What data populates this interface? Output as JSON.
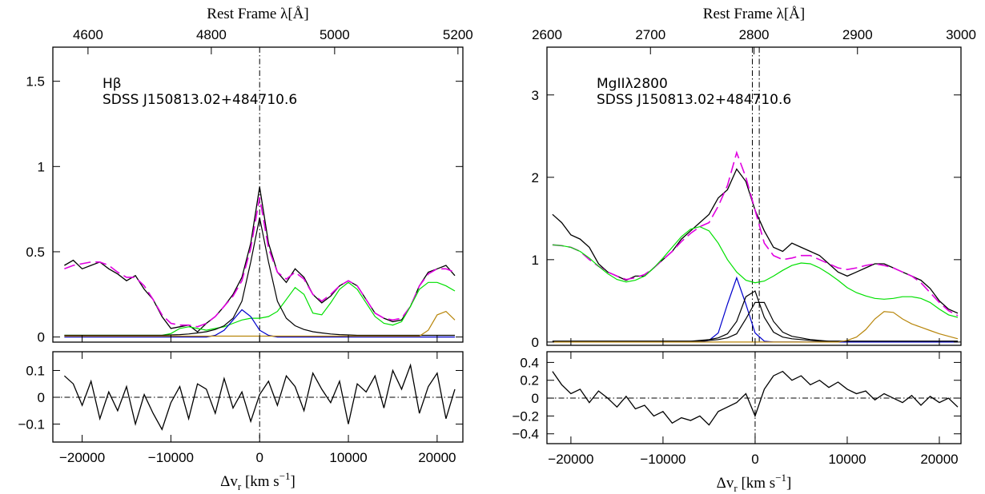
{
  "chart_data": [
    {
      "type": "line",
      "annotations": [
        "Hβ",
        "SDSS J150813.02+484710.6"
      ],
      "x2label": "Rest Frame λ[Å]",
      "x2lim": [
        4543,
        5208
      ],
      "x2ticks": [
        4600,
        4800,
        5000,
        5200
      ],
      "xlim": [
        -23300,
        22900
      ],
      "xticks": [
        -20000,
        -10000,
        0,
        10000,
        20000
      ],
      "ylim": [
        -0.03,
        1.7
      ],
      "yticks": [
        0,
        0.5,
        1,
        1.5
      ],
      "vlines": [
        0
      ],
      "x": [
        -22000,
        -21000,
        -20000,
        -19000,
        -18000,
        -17000,
        -16000,
        -15000,
        -14000,
        -13000,
        -12000,
        -11000,
        -10000,
        -9000,
        -8000,
        -7000,
        -6000,
        -5000,
        -4000,
        -3000,
        -2000,
        -1000,
        0,
        1000,
        2000,
        3000,
        4000,
        5000,
        6000,
        7000,
        8000,
        9000,
        10000,
        11000,
        12000,
        13000,
        14000,
        15000,
        16000,
        17000,
        18000,
        19000,
        20000,
        21000,
        22000
      ],
      "series": [
        {
          "color": "#000000",
          "values": [
            0.42,
            0.45,
            0.4,
            0.42,
            0.44,
            0.4,
            0.37,
            0.33,
            0.36,
            0.28,
            0.22,
            0.12,
            0.05,
            0.06,
            0.07,
            0.03,
            0.08,
            0.12,
            0.18,
            0.25,
            0.35,
            0.55,
            0.88,
            0.55,
            0.38,
            0.32,
            0.4,
            0.35,
            0.25,
            0.2,
            0.24,
            0.3,
            0.33,
            0.3,
            0.22,
            0.14,
            0.11,
            0.09,
            0.1,
            0.18,
            0.3,
            0.38,
            0.4,
            0.42,
            0.36
          ]
        },
        {
          "color": "#e000e0",
          "dashed": true,
          "values": [
            0.4,
            0.42,
            0.43,
            0.44,
            0.44,
            0.42,
            0.38,
            0.35,
            0.35,
            0.3,
            0.22,
            0.13,
            0.08,
            0.07,
            0.07,
            0.06,
            0.08,
            0.12,
            0.18,
            0.24,
            0.33,
            0.52,
            0.82,
            0.52,
            0.38,
            0.34,
            0.38,
            0.34,
            0.25,
            0.21,
            0.25,
            0.3,
            0.33,
            0.3,
            0.22,
            0.14,
            0.11,
            0.1,
            0.11,
            0.18,
            0.3,
            0.37,
            0.4,
            0.4,
            0.38
          ]
        },
        {
          "color": "#00e000",
          "values": [
            0.01,
            0.01,
            0.01,
            0.01,
            0.01,
            0.01,
            0.01,
            0.01,
            0.01,
            0.01,
            0.01,
            0.01,
            0.02,
            0.05,
            0.06,
            0.05,
            0.04,
            0.05,
            0.06,
            0.08,
            0.1,
            0.11,
            0.11,
            0.12,
            0.15,
            0.22,
            0.29,
            0.25,
            0.14,
            0.13,
            0.2,
            0.28,
            0.32,
            0.28,
            0.2,
            0.12,
            0.08,
            0.07,
            0.09,
            0.18,
            0.28,
            0.32,
            0.32,
            0.3,
            0.27
          ]
        },
        {
          "color": "#0000cc",
          "values": [
            0,
            0,
            0,
            0,
            0,
            0,
            0,
            0,
            0,
            0,
            0,
            0,
            0,
            0,
            0,
            0,
            0,
            0.01,
            0.04,
            0.1,
            0.16,
            0.12,
            0.04,
            0.01,
            0,
            0,
            0,
            0,
            0,
            0,
            0,
            0,
            0,
            0,
            0,
            0,
            0,
            0,
            0,
            0,
            0,
            0,
            0,
            0,
            0
          ]
        },
        {
          "color": "#000000",
          "values": [
            0.01,
            0.01,
            0.01,
            0.01,
            0.01,
            0.01,
            0.01,
            0.01,
            0.01,
            0.01,
            0.01,
            0.01,
            0.012,
            0.014,
            0.018,
            0.024,
            0.031,
            0.044,
            0.066,
            0.11,
            0.21,
            0.44,
            0.7,
            0.44,
            0.21,
            0.11,
            0.066,
            0.044,
            0.031,
            0.024,
            0.018,
            0.014,
            0.012,
            0.01,
            0.01,
            0.01,
            0.01,
            0.01,
            0.01,
            0.01,
            0.01,
            0.01,
            0.01,
            0.01,
            0.01
          ]
        },
        {
          "color": "#b8860b",
          "values": [
            0.005,
            0.005,
            0.005,
            0.005,
            0.005,
            0.005,
            0.005,
            0.005,
            0.005,
            0.005,
            0.005,
            0.005,
            0.005,
            0.005,
            0.005,
            0.005,
            0.005,
            0.005,
            0.005,
            0.005,
            0.005,
            0.005,
            0.005,
            0.005,
            0.005,
            0.005,
            0.005,
            0.005,
            0.005,
            0.005,
            0.005,
            0.005,
            0.005,
            0.005,
            0.005,
            0.005,
            0.005,
            0.005,
            0.005,
            0.005,
            0.005,
            0.04,
            0.13,
            0.15,
            0.1
          ]
        }
      ]
    },
    {
      "type": "line",
      "xlabel": [
        "Δv",
        "r",
        " [km s",
        "−1",
        "]"
      ],
      "xlim": [
        -23300,
        22900
      ],
      "xticks": [
        {
          "value": -20000,
          "label": "−20000"
        },
        {
          "value": -10000,
          "label": "−10000"
        },
        0,
        10000,
        20000
      ],
      "ylim": [
        -0.167,
        0.17
      ],
      "yticks": [
        {
          "value": -0.1,
          "label": "−0.1"
        },
        0,
        0.1
      ],
      "vlines": [
        0
      ],
      "hline": 0,
      "x": [
        -22000,
        -21000,
        -20000,
        -19000,
        -18000,
        -17000,
        -16000,
        -15000,
        -14000,
        -13000,
        -12000,
        -11000,
        -10000,
        -9000,
        -8000,
        -7000,
        -6000,
        -5000,
        -4000,
        -3000,
        -2000,
        -1000,
        0,
        1000,
        2000,
        3000,
        4000,
        5000,
        6000,
        7000,
        8000,
        9000,
        10000,
        11000,
        12000,
        13000,
        14000,
        15000,
        16000,
        17000,
        18000,
        19000,
        20000,
        21000,
        22000
      ],
      "series": [
        {
          "color": "#000000",
          "values": [
            0.08,
            0.05,
            -0.03,
            0.06,
            -0.08,
            0.02,
            -0.05,
            0.04,
            -0.1,
            0.01,
            -0.06,
            -0.12,
            -0.02,
            0.04,
            -0.08,
            0.05,
            0.03,
            -0.06,
            0.07,
            -0.04,
            0.02,
            -0.09,
            0.01,
            0.06,
            -0.03,
            0.08,
            0.04,
            -0.05,
            0.09,
            0.03,
            -0.02,
            0.06,
            -0.1,
            0.05,
            0.02,
            0.08,
            -0.04,
            0.1,
            0.03,
            0.12,
            -0.06,
            0.04,
            0.09,
            -0.08,
            0.03
          ]
        }
      ]
    },
    {
      "type": "line",
      "annotations": [
        "MgIIλ2800",
        "SDSS J150813.02+484710.6"
      ],
      "x2label": "Rest Frame λ[Å]",
      "x2lim": [
        2600,
        3000
      ],
      "x2ticks": [
        2600,
        2700,
        2800,
        2900,
        3000
      ],
      "xlim": [
        -22600,
        22350
      ],
      "xticks": [
        -20000,
        -10000,
        0,
        10000,
        20000
      ],
      "ylim": [
        -0.04,
        3.58
      ],
      "yticks": [
        0,
        1,
        2,
        3
      ],
      "vlines": [
        -300,
        450
      ],
      "x": [
        -22000,
        -21000,
        -20000,
        -19000,
        -18000,
        -17000,
        -16000,
        -15000,
        -14000,
        -13000,
        -12000,
        -11000,
        -10000,
        -9000,
        -8000,
        -7000,
        -6000,
        -5000,
        -4000,
        -3000,
        -2000,
        -1000,
        0,
        1000,
        2000,
        3000,
        4000,
        5000,
        6000,
        7000,
        8000,
        9000,
        10000,
        11000,
        12000,
        13000,
        14000,
        15000,
        16000,
        17000,
        18000,
        19000,
        20000,
        21000,
        22000
      ],
      "series": [
        {
          "color": "#000000",
          "values": [
            1.55,
            1.45,
            1.3,
            1.25,
            1.15,
            0.95,
            0.85,
            0.8,
            0.75,
            0.8,
            0.8,
            0.9,
            1.0,
            1.1,
            1.25,
            1.35,
            1.45,
            1.55,
            1.75,
            1.85,
            2.1,
            1.95,
            1.6,
            1.35,
            1.15,
            1.1,
            1.2,
            1.15,
            1.1,
            1.05,
            0.95,
            0.85,
            0.8,
            0.85,
            0.9,
            0.95,
            0.95,
            0.9,
            0.85,
            0.8,
            0.75,
            0.65,
            0.5,
            0.4,
            0.35
          ]
        },
        {
          "color": "#e000e0",
          "dashed": true,
          "values": [
            1.18,
            1.17,
            1.15,
            1.1,
            1.0,
            0.92,
            0.85,
            0.8,
            0.76,
            0.78,
            0.82,
            0.9,
            1.0,
            1.1,
            1.22,
            1.32,
            1.4,
            1.45,
            1.65,
            1.9,
            2.3,
            2.0,
            1.6,
            1.2,
            1.05,
            1.0,
            1.02,
            1.05,
            1.05,
            1.0,
            0.95,
            0.9,
            0.88,
            0.9,
            0.93,
            0.95,
            0.93,
            0.9,
            0.85,
            0.8,
            0.72,
            0.6,
            0.48,
            0.38,
            0.32
          ]
        },
        {
          "color": "#00e000",
          "values": [
            1.18,
            1.17,
            1.15,
            1.1,
            1.02,
            0.92,
            0.83,
            0.76,
            0.73,
            0.75,
            0.8,
            0.9,
            1.02,
            1.15,
            1.28,
            1.37,
            1.4,
            1.35,
            1.2,
            1.0,
            0.85,
            0.75,
            0.72,
            0.74,
            0.8,
            0.87,
            0.93,
            0.96,
            0.95,
            0.9,
            0.83,
            0.75,
            0.66,
            0.6,
            0.56,
            0.53,
            0.52,
            0.53,
            0.55,
            0.55,
            0.53,
            0.48,
            0.4,
            0.33,
            0.3
          ]
        },
        {
          "color": "#0000cc",
          "values": [
            0,
            0,
            0,
            0,
            0,
            0,
            0,
            0,
            0,
            0,
            0,
            0,
            0,
            0,
            0,
            0,
            0,
            0.02,
            0.11,
            0.46,
            0.78,
            0.46,
            0.11,
            0.01,
            0,
            0,
            0,
            0,
            0,
            0,
            0,
            0,
            0,
            0,
            0,
            0,
            0,
            0,
            0,
            0,
            0,
            0,
            0,
            0,
            0
          ]
        },
        {
          "color": "#000000",
          "values": [
            0.01,
            0.01,
            0.01,
            0.01,
            0.01,
            0.01,
            0.01,
            0.01,
            0.01,
            0.01,
            0.01,
            0.01,
            0.01,
            0.01,
            0.01,
            0.01,
            0.02,
            0.03,
            0.05,
            0.1,
            0.25,
            0.55,
            0.62,
            0.3,
            0.12,
            0.06,
            0.04,
            0.03,
            0.02,
            0.01,
            0.01,
            0.01,
            0.01,
            0.01,
            0.01,
            0.01,
            0.01,
            0.01,
            0.01,
            0.01,
            0.01,
            0.01,
            0.01,
            0.01,
            0.01
          ]
        },
        {
          "color": "#000000",
          "values": [
            0.01,
            0.01,
            0.01,
            0.01,
            0.01,
            0.01,
            0.01,
            0.01,
            0.01,
            0.01,
            0.01,
            0.01,
            0.01,
            0.01,
            0.01,
            0.01,
            0.01,
            0.02,
            0.03,
            0.05,
            0.1,
            0.28,
            0.48,
            0.48,
            0.25,
            0.12,
            0.07,
            0.05,
            0.03,
            0.02,
            0.01,
            0.01,
            0.01,
            0.01,
            0.01,
            0.01,
            0.01,
            0.01,
            0.01,
            0.01,
            0.01,
            0.01,
            0.01,
            0.01,
            0.01
          ]
        },
        {
          "color": "#b8860b",
          "values": [
            0,
            0,
            0,
            0,
            0,
            0,
            0,
            0,
            0,
            0,
            0,
            0,
            0,
            0,
            0,
            0,
            0,
            0,
            0,
            0,
            0,
            0,
            0,
            0,
            0,
            0,
            0,
            0,
            0,
            0,
            0,
            0,
            0.02,
            0.06,
            0.15,
            0.28,
            0.37,
            0.36,
            0.28,
            0.22,
            0.18,
            0.14,
            0.1,
            0.07,
            0.04
          ]
        }
      ]
    },
    {
      "type": "line",
      "xlabel": [
        "Δv",
        "r",
        " [km s",
        "−1",
        "]"
      ],
      "xlim": [
        -22600,
        22350
      ],
      "xticks": [
        {
          "value": -20000,
          "label": "−20000"
        },
        {
          "value": -10000,
          "label": "−10000"
        },
        0,
        10000,
        20000
      ],
      "ylim": [
        -0.51,
        0.52
      ],
      "yticks": [
        {
          "value": -0.4,
          "label": "−0.4"
        },
        {
          "value": -0.2,
          "label": "−0.2"
        },
        0,
        0.2,
        0.4
      ],
      "vlines": [
        0
      ],
      "hline": 0,
      "x": [
        -22000,
        -21000,
        -20000,
        -19000,
        -18000,
        -17000,
        -16000,
        -15000,
        -14000,
        -13000,
        -12000,
        -11000,
        -10000,
        -9000,
        -8000,
        -7000,
        -6000,
        -5000,
        -4000,
        -3000,
        -2000,
        -1000,
        0,
        1000,
        2000,
        3000,
        4000,
        5000,
        6000,
        7000,
        8000,
        9000,
        10000,
        11000,
        12000,
        13000,
        14000,
        15000,
        16000,
        17000,
        18000,
        19000,
        20000,
        21000,
        22000
      ],
      "series": [
        {
          "color": "#000000",
          "values": [
            0.3,
            0.15,
            0.05,
            0.1,
            -0.05,
            0.08,
            0,
            -0.1,
            0.02,
            -0.12,
            -0.08,
            -0.2,
            -0.15,
            -0.28,
            -0.22,
            -0.25,
            -0.2,
            -0.3,
            -0.15,
            -0.1,
            -0.05,
            0.05,
            -0.2,
            0.1,
            0.25,
            0.3,
            0.2,
            0.25,
            0.15,
            0.2,
            0.12,
            0.18,
            0.1,
            0.05,
            0.08,
            -0.02,
            0.05,
            0,
            -0.05,
            0.03,
            -0.08,
            0.02,
            -0.05,
            0,
            -0.1
          ]
        }
      ]
    }
  ]
}
